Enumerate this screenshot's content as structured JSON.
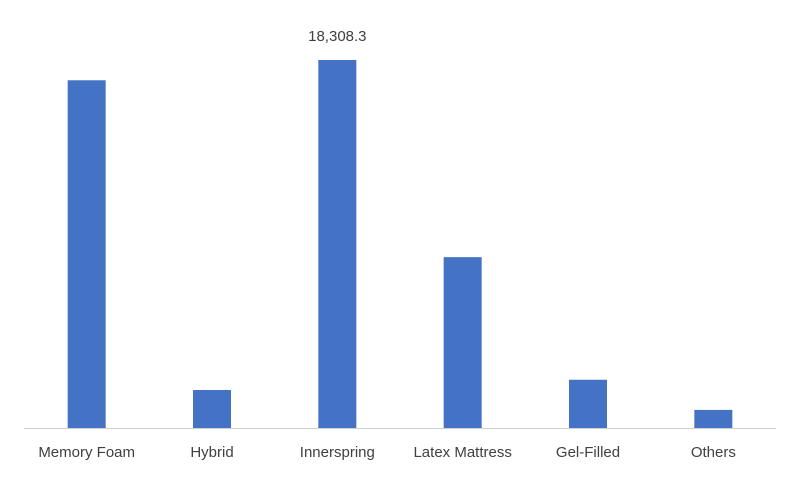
{
  "chart_data": {
    "type": "bar",
    "categories": [
      "Memory Foam",
      "Hybrid",
      "Innerspring",
      "Latex Mattress",
      "Gel-Filled",
      "Others"
    ],
    "values": [
      17300,
      1890,
      18308.3,
      8500,
      2400,
      900
    ],
    "value_labels": [
      null,
      null,
      "18,308.3",
      null,
      null,
      null
    ],
    "color": "#4472c4"
  }
}
